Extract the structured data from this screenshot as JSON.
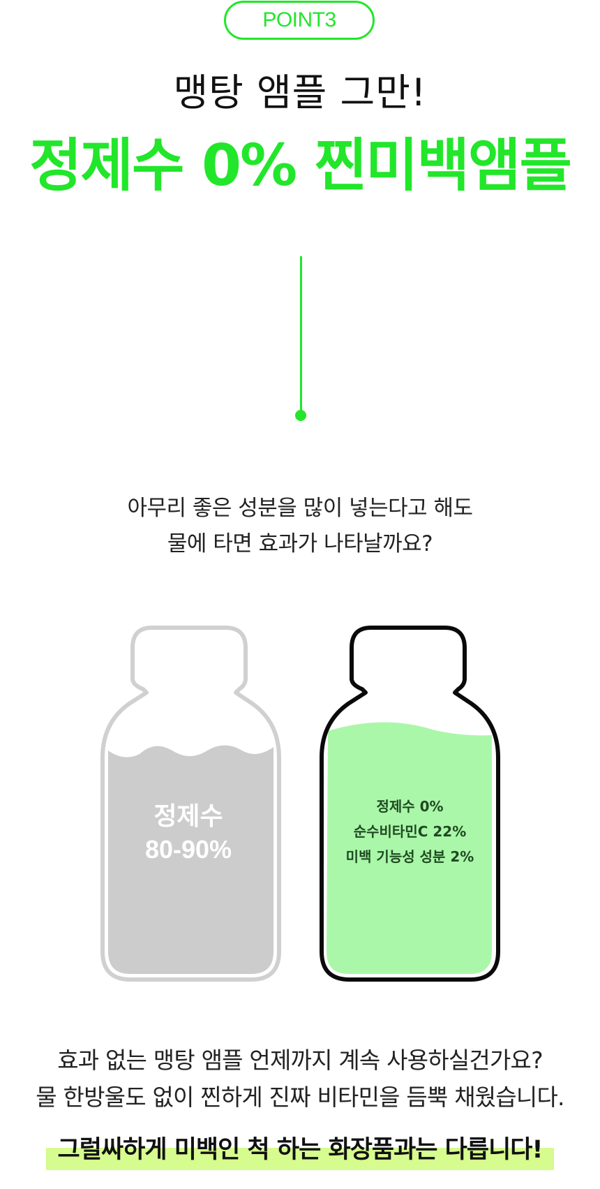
{
  "header": {
    "point_label": "POINT3",
    "line1": "맹탕 앰플 그만!",
    "line2": "정제수 0% 찐미백앰플"
  },
  "question": {
    "line1": "아무리 좋은 성분을 많이 넣는다고 해도",
    "line2": "물에 타면 효과가 나타날까요?"
  },
  "comparison": {
    "gray_bottle": {
      "line1": "정제수",
      "line2": "80-90%"
    },
    "green_bottle": {
      "line1": "정제수 0%",
      "line2": "순수비타민C 22%",
      "line3": "미백 기능성 성분 2%"
    }
  },
  "closing": {
    "line1": "효과 없는 맹탕 앰플 언제까지 계속 사용하실건가요?",
    "line2": "물 한방울도 없이 찐하게 진짜 비타민을 듬뿍 채웠습니다.",
    "emphasis": "그럴싸하게 미백인 척 하는 화장품과는 다릅니다!"
  },
  "colors": {
    "accent_green": "#22e62a",
    "liquid_green": "#aaf7aa",
    "bottle_gray": "#d0d0d0",
    "highlight": "#d6fb8e"
  }
}
